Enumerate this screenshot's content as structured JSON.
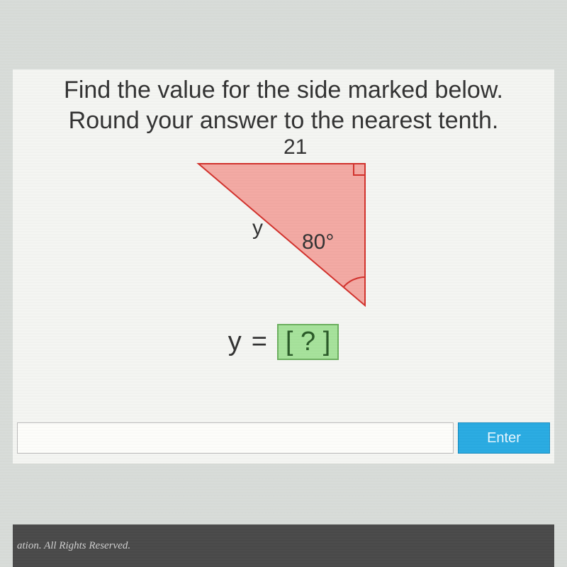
{
  "question": {
    "line1": "Find the value for the side marked below.",
    "line2": "Round your answer to the nearest tenth."
  },
  "triangle": {
    "type": "right-triangle",
    "top_side_label": "21",
    "hypotenuse_label": "y",
    "angle_label": "80°",
    "points": {
      "top_left": [
        40,
        36
      ],
      "top_right": [
        275,
        36
      ],
      "bottom": [
        275,
        236
      ]
    },
    "fill_color": "#f3a9a3",
    "stroke_color": "#d2322d",
    "stroke_width": 2,
    "right_angle_marker_size": 16,
    "angle_arc_radius": 40
  },
  "equation": {
    "lhs": "y",
    "eq": "=",
    "placeholder": "[ ? ]"
  },
  "answer_box": {
    "background": "#a6e29b",
    "border": "#6cb05f",
    "text_color": "#2a5a28"
  },
  "buttons": {
    "enter": "Enter"
  },
  "footer": {
    "text": "ation.  All Rights Reserved."
  },
  "colors": {
    "page_bg": "#d8dcd9",
    "content_bg": "#f4f5f2",
    "footer_bg": "#4a4a4a",
    "enter_bg": "#29abe2"
  }
}
